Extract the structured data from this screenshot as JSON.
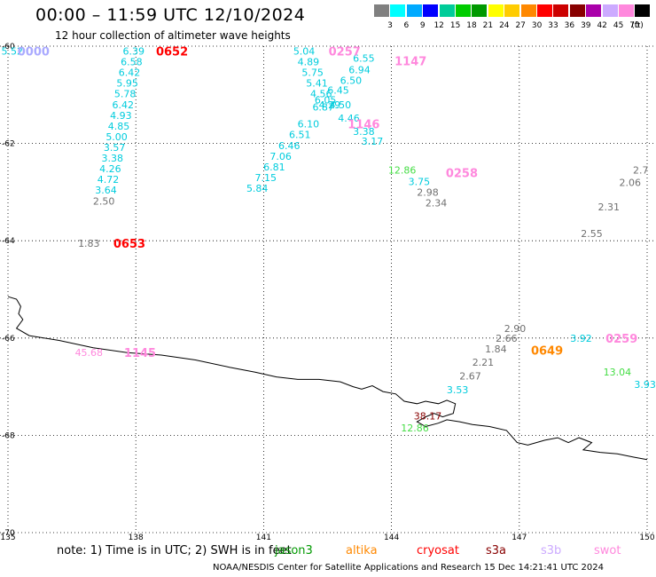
{
  "header": {
    "title": "00:00 – 11:59 UTC 12/10/2024",
    "subtitle": "12 hour collection of altimeter wave heights"
  },
  "legend": {
    "unit": "(ft)",
    "bins": [
      {
        "label": "3",
        "color": "#808080"
      },
      {
        "label": "6",
        "color": "#00ffff"
      },
      {
        "label": "9",
        "color": "#00aaff"
      },
      {
        "label": "12",
        "color": "#0000ff"
      },
      {
        "label": "15",
        "color": "#00cc99"
      },
      {
        "label": "18",
        "color": "#00cc00"
      },
      {
        "label": "21",
        "color": "#009900"
      },
      {
        "label": "24",
        "color": "#ffff00"
      },
      {
        "label": "27",
        "color": "#ffcc00"
      },
      {
        "label": "30",
        "color": "#ff8800"
      },
      {
        "label": "33",
        "color": "#ff0000"
      },
      {
        "label": "36",
        "color": "#cc0000"
      },
      {
        "label": "39",
        "color": "#880000"
      },
      {
        "label": "42",
        "color": "#aa00aa"
      },
      {
        "label": "45",
        "color": "#ccaaff"
      },
      {
        "label": "70",
        "color": "#ff88dd"
      },
      {
        "label": "",
        "color": "#000000"
      }
    ]
  },
  "map": {
    "lon_ticks": [
      "135",
      "138",
      "141",
      "144",
      "147",
      "150"
    ],
    "lat_ticks": [
      "-60",
      "-62",
      "-64",
      "-66",
      "-68",
      "-70"
    ],
    "observations": [
      {
        "lon": 135.1,
        "lat": -60.1,
        "v": "5.52",
        "c": "#00ccdd"
      },
      {
        "lon": 137.95,
        "lat": -60.1,
        "v": "6.39",
        "c": "#00ccdd"
      },
      {
        "lon": 137.9,
        "lat": -60.32,
        "v": "6.58",
        "c": "#00ccdd"
      },
      {
        "lon": 137.85,
        "lat": -60.54,
        "v": "6.42",
        "c": "#00ccdd"
      },
      {
        "lon": 137.8,
        "lat": -60.76,
        "v": "5.95",
        "c": "#00ccdd"
      },
      {
        "lon": 137.75,
        "lat": -60.98,
        "v": "5.78",
        "c": "#00ccdd"
      },
      {
        "lon": 137.7,
        "lat": -61.2,
        "v": "6.42",
        "c": "#00ccdd"
      },
      {
        "lon": 137.65,
        "lat": -61.42,
        "v": "4.93",
        "c": "#00ccdd"
      },
      {
        "lon": 137.6,
        "lat": -61.64,
        "v": "4.85",
        "c": "#00ccdd"
      },
      {
        "lon": 137.55,
        "lat": -61.86,
        "v": "5.00",
        "c": "#00ccdd"
      },
      {
        "lon": 137.5,
        "lat": -62.08,
        "v": "3.57",
        "c": "#00ccdd"
      },
      {
        "lon": 137.45,
        "lat": -62.3,
        "v": "3.38",
        "c": "#00ccdd"
      },
      {
        "lon": 137.4,
        "lat": -62.52,
        "v": "4.26",
        "c": "#00ccdd"
      },
      {
        "lon": 137.35,
        "lat": -62.74,
        "v": "4.72",
        "c": "#00ccdd"
      },
      {
        "lon": 137.3,
        "lat": -62.96,
        "v": "3.64",
        "c": "#00ccdd"
      },
      {
        "lon": 137.25,
        "lat": -63.18,
        "v": "2.50",
        "c": "#707070"
      },
      {
        "lon": 136.9,
        "lat": -64.05,
        "v": "1.83",
        "c": "#707070"
      },
      {
        "lon": 141.95,
        "lat": -60.1,
        "v": "5.04",
        "c": "#00ccdd"
      },
      {
        "lon": 142.05,
        "lat": -60.32,
        "v": "4.89",
        "c": "#00ccdd"
      },
      {
        "lon": 142.15,
        "lat": -60.54,
        "v": "5.75",
        "c": "#00ccdd"
      },
      {
        "lon": 142.25,
        "lat": -60.76,
        "v": "5.41",
        "c": "#00ccdd"
      },
      {
        "lon": 142.35,
        "lat": -60.98,
        "v": "4.56",
        "c": "#00ccdd"
      },
      {
        "lon": 142.45,
        "lat": -61.1,
        "v": "6.05",
        "c": "#00ccdd"
      },
      {
        "lon": 142.55,
        "lat": -61.2,
        "v": "4.29",
        "c": "#00ccdd"
      },
      {
        "lon": 142.75,
        "lat": -60.9,
        "v": "6.45",
        "c": "#00ccdd"
      },
      {
        "lon": 143.05,
        "lat": -60.7,
        "v": "6.50",
        "c": "#00ccdd"
      },
      {
        "lon": 143.25,
        "lat": -60.48,
        "v": "6.94",
        "c": "#00ccdd"
      },
      {
        "lon": 143.35,
        "lat": -60.25,
        "v": "6.55",
        "c": "#00ccdd"
      },
      {
        "lon": 142.8,
        "lat": -61.2,
        "v": "4.50",
        "c": "#00ccdd"
      },
      {
        "lon": 142.4,
        "lat": -61.25,
        "v": "6.87",
        "c": "#00ccdd"
      },
      {
        "lon": 143.0,
        "lat": -61.48,
        "v": "4.46",
        "c": "#00ccdd"
      },
      {
        "lon": 143.35,
        "lat": -61.75,
        "v": "3.38",
        "c": "#00ccdd"
      },
      {
        "lon": 143.55,
        "lat": -61.95,
        "v": "3.17",
        "c": "#00ccdd"
      },
      {
        "lon": 142.05,
        "lat": -61.6,
        "v": "6.10",
        "c": "#00ccdd"
      },
      {
        "lon": 141.85,
        "lat": -61.82,
        "v": "6.51",
        "c": "#00ccdd"
      },
      {
        "lon": 141.6,
        "lat": -62.04,
        "v": "6.46",
        "c": "#00ccdd"
      },
      {
        "lon": 141.4,
        "lat": -62.26,
        "v": "7.06",
        "c": "#00ccdd"
      },
      {
        "lon": 141.25,
        "lat": -62.48,
        "v": "6.81",
        "c": "#00ccdd"
      },
      {
        "lon": 141.05,
        "lat": -62.7,
        "v": "7.15",
        "c": "#00ccdd"
      },
      {
        "lon": 140.85,
        "lat": -62.92,
        "v": "5.84",
        "c": "#00ccdd"
      },
      {
        "lon": 144.25,
        "lat": -62.55,
        "v": "12.86",
        "c": "#44dd44"
      },
      {
        "lon": 144.65,
        "lat": -62.78,
        "v": "3.75",
        "c": "#00ccdd"
      },
      {
        "lon": 144.85,
        "lat": -63.0,
        "v": "2.98",
        "c": "#707070"
      },
      {
        "lon": 145.05,
        "lat": -63.22,
        "v": "2.34",
        "c": "#707070"
      },
      {
        "lon": 149.85,
        "lat": -62.55,
        "v": "2.7",
        "c": "#707070"
      },
      {
        "lon": 149.6,
        "lat": -62.8,
        "v": "2.06",
        "c": "#707070"
      },
      {
        "lon": 149.1,
        "lat": -63.3,
        "v": "2.31",
        "c": "#707070"
      },
      {
        "lon": 148.7,
        "lat": -63.85,
        "v": "2.55",
        "c": "#707070"
      },
      {
        "lon": 146.9,
        "lat": -65.8,
        "v": "2.90",
        "c": "#707070"
      },
      {
        "lon": 146.7,
        "lat": -66.0,
        "v": "2.66",
        "c": "#707070"
      },
      {
        "lon": 146.45,
        "lat": -66.22,
        "v": "1.84",
        "c": "#707070"
      },
      {
        "lon": 146.15,
        "lat": -66.5,
        "v": "2.21",
        "c": "#707070"
      },
      {
        "lon": 145.85,
        "lat": -66.78,
        "v": "2.67",
        "c": "#707070"
      },
      {
        "lon": 145.55,
        "lat": -67.06,
        "v": "3.53",
        "c": "#00ccdd"
      },
      {
        "lon": 148.45,
        "lat": -66.0,
        "v": "3.92",
        "c": "#00ccdd"
      },
      {
        "lon": 149.3,
        "lat": -66.7,
        "v": "13.04",
        "c": "#44dd44"
      },
      {
        "lon": 149.95,
        "lat": -66.95,
        "v": "3.93",
        "c": "#00ccdd"
      },
      {
        "lon": 144.85,
        "lat": -67.6,
        "v": "38.17",
        "c": "#880000"
      },
      {
        "lon": 144.55,
        "lat": -67.85,
        "v": "12.86",
        "c": "#44dd44"
      },
      {
        "lon": 136.9,
        "lat": -66.3,
        "v": "45.68",
        "c": "#ff88dd"
      }
    ],
    "time_labels": [
      {
        "lon": 135.6,
        "lat": -60.1,
        "v": "0000",
        "c": "#aaaaff"
      },
      {
        "lon": 138.85,
        "lat": -60.1,
        "v": "0652",
        "c": "#ff0000"
      },
      {
        "lon": 142.9,
        "lat": -60.1,
        "v": "0257",
        "c": "#ff88dd"
      },
      {
        "lon": 144.45,
        "lat": -60.3,
        "v": "1147",
        "c": "#ff88dd"
      },
      {
        "lon": 143.35,
        "lat": -61.6,
        "v": "1146",
        "c": "#ff88dd"
      },
      {
        "lon": 145.65,
        "lat": -62.6,
        "v": "0258",
        "c": "#ff88dd"
      },
      {
        "lon": 137.85,
        "lat": -64.05,
        "v": "0653",
        "c": "#ff0000"
      },
      {
        "lon": 138.1,
        "lat": -66.3,
        "v": "1145",
        "c": "#ff88dd"
      },
      {
        "lon": 147.65,
        "lat": -66.25,
        "v": "0649",
        "c": "#ff8800"
      },
      {
        "lon": 149.4,
        "lat": -66.0,
        "v": "0259",
        "c": "#ff88dd"
      }
    ]
  },
  "footer": {
    "note": "note:  1) Time is in UTC; 2) SWH is in feet",
    "satellites": [
      {
        "name": "jason3",
        "color": "#009900"
      },
      {
        "name": "altika",
        "color": "#ff8800"
      },
      {
        "name": "cryosat",
        "color": "#ff0000"
      },
      {
        "name": "s3a",
        "color": "#880000"
      },
      {
        "name": "s3b",
        "color": "#ccaaff"
      },
      {
        "name": "swot",
        "color": "#ff88dd"
      }
    ],
    "credit": "NOAA/NESDIS Center for Satellite Applications and Research   15 Dec 14:21:41 UTC 2024"
  }
}
